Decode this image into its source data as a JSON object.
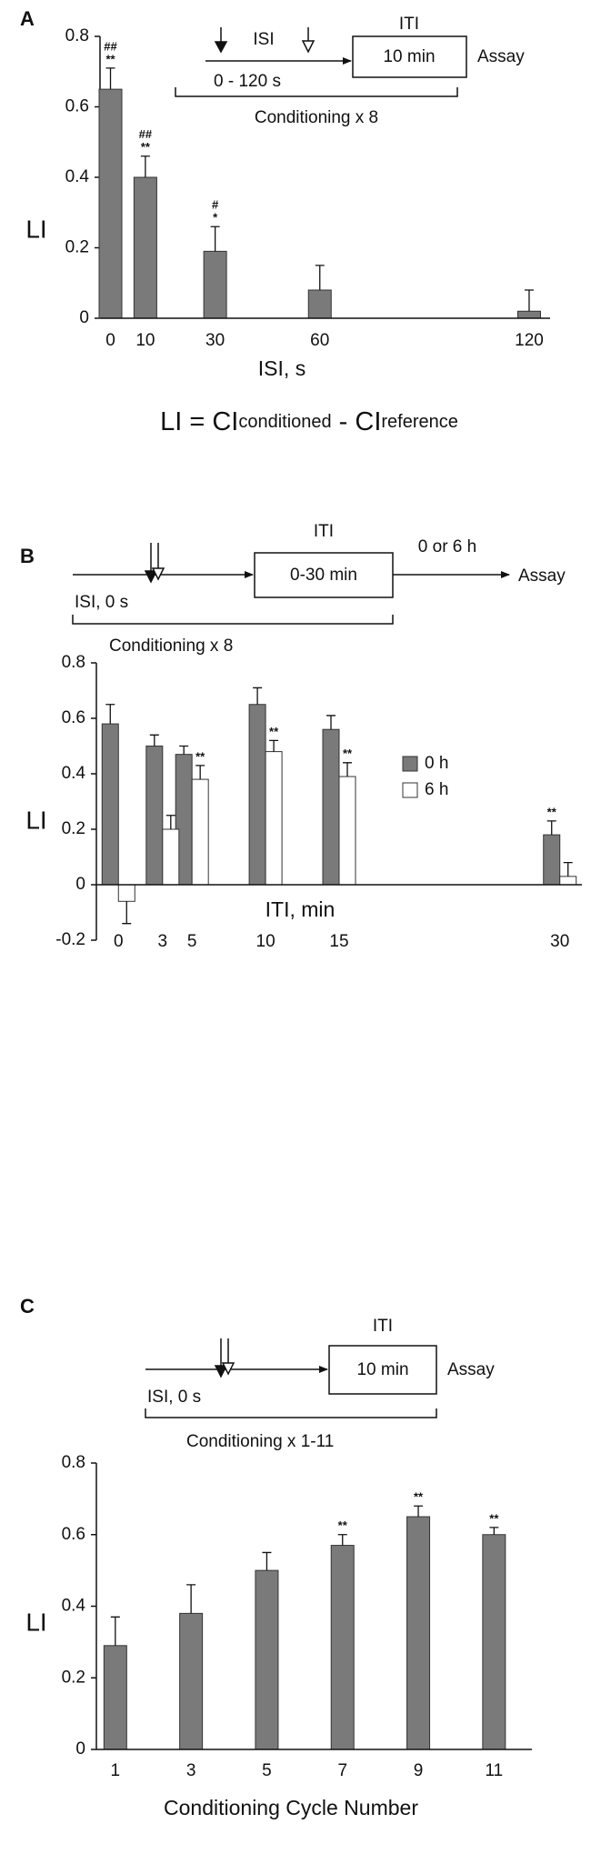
{
  "chart_data": [
    {
      "type": "bar",
      "panel": "A",
      "ylabel": "LI",
      "xlabel": "ISI, s",
      "x": [
        0,
        10,
        30,
        60,
        120
      ],
      "values": [
        0.65,
        0.4,
        0.19,
        0.08,
        0.02
      ],
      "errors": [
        0.06,
        0.06,
        0.07,
        0.07,
        0.06
      ],
      "significance": [
        [
          "##",
          "**"
        ],
        [
          "##",
          "**"
        ],
        [
          "#",
          "*"
        ],
        null,
        null
      ],
      "color": "#7a7a7a",
      "xlim": [
        -3,
        126
      ],
      "xticks": [
        0,
        10,
        30,
        60,
        120
      ],
      "ylim": [
        0,
        0.8
      ],
      "yticks": [
        0,
        0.2,
        0.4,
        0.6,
        0.8
      ],
      "schematic": {
        "iti": "ITI",
        "iti_duration": "10 min",
        "assay": "Assay",
        "isi": "ISI",
        "isi_range": "0 - 120 s",
        "conditioning": "Conditioning x 8"
      },
      "formula": {
        "lhs": "LI = CI",
        "sub1": "conditioned",
        "mid": "-  CI",
        "sub2": "reference"
      }
    },
    {
      "type": "bar",
      "panel": "B",
      "ylabel": "LI",
      "xlabel": "ITI, min",
      "x": [
        0,
        3,
        5,
        10,
        15,
        30
      ],
      "series": [
        {
          "name": "0 h",
          "color": "#7a7a7a",
          "values": [
            0.58,
            0.5,
            0.47,
            0.65,
            0.56,
            0.18
          ],
          "errors": [
            0.07,
            0.04,
            0.03,
            0.06,
            0.05,
            0.05
          ],
          "significance": [
            null,
            null,
            null,
            null,
            null,
            [
              "**"
            ]
          ]
        },
        {
          "name": "6 h",
          "color": "#ffffff",
          "values": [
            -0.06,
            0.2,
            0.38,
            0.48,
            0.39,
            0.03
          ],
          "errors": [
            0.08,
            0.05,
            0.05,
            0.04,
            0.05,
            0.05
          ],
          "significance": [
            null,
            null,
            [
              "**"
            ],
            [
              "**"
            ],
            [
              "**"
            ],
            null
          ]
        }
      ],
      "xlim": [
        -1.5,
        31.5
      ],
      "xticks": [
        0,
        3,
        5,
        10,
        15,
        30
      ],
      "ylim": [
        -0.2,
        0.8
      ],
      "yticks": [
        -0.2,
        0,
        0.2,
        0.4,
        0.6,
        0.8
      ],
      "schematic": {
        "iti": "ITI",
        "iti_duration": "0-30 min",
        "delay": "0 or 6 h",
        "assay": "Assay",
        "isi": "ISI, 0 s",
        "conditioning": "Conditioning x 8"
      }
    },
    {
      "type": "bar",
      "panel": "C",
      "ylabel": "LI",
      "xlabel": "Conditioning Cycle Number",
      "x": [
        1,
        3,
        5,
        7,
        9,
        11
      ],
      "values": [
        0.29,
        0.38,
        0.5,
        0.57,
        0.65,
        0.6
      ],
      "errors": [
        0.08,
        0.08,
        0.05,
        0.03,
        0.03,
        0.02
      ],
      "significance": [
        null,
        null,
        null,
        [
          "**"
        ],
        [
          "**"
        ],
        [
          "**"
        ]
      ],
      "color": "#7a7a7a",
      "xlim": [
        0.5,
        12
      ],
      "xticks": [
        1,
        3,
        5,
        7,
        9,
        11
      ],
      "ylim": [
        0,
        0.8
      ],
      "yticks": [
        0,
        0.2,
        0.4,
        0.6,
        0.8
      ],
      "schematic": {
        "iti": "ITI",
        "iti_duration": "10 min",
        "assay": "Assay",
        "isi": "ISI, 0 s",
        "conditioning": "Conditioning x 1-11"
      }
    }
  ]
}
